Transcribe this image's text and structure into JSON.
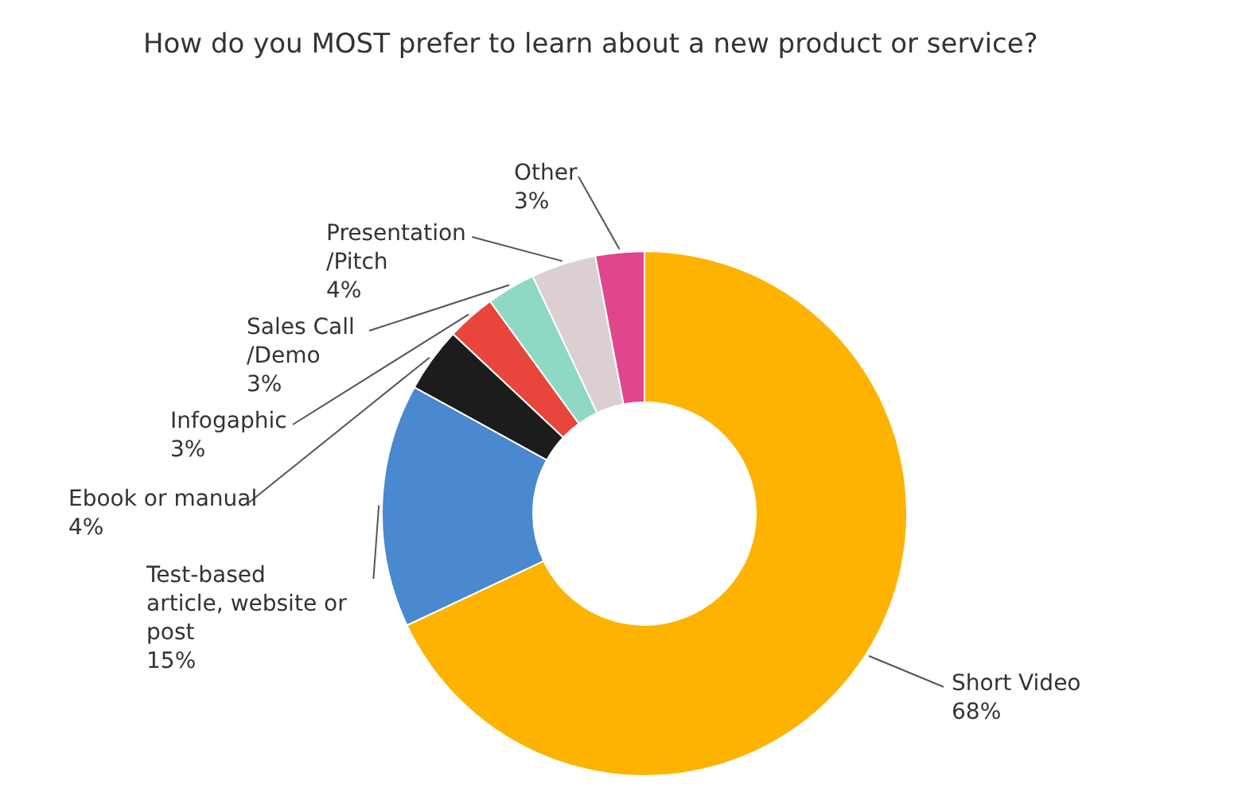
{
  "chart_data": {
    "type": "donut",
    "title": "How do you MOST prefer to learn about a new product or service?",
    "categories": [
      "Short Video",
      "Test-based\narticle, website or\npost",
      "Ebook or manual",
      "Infogaphic",
      "Sales Call\n/Demo",
      "Presentation\n/Pitch",
      "Other"
    ],
    "values": [
      68,
      15,
      4,
      3,
      3,
      4,
      3
    ],
    "colors": [
      "#fdb300",
      "#4a88d0",
      "#1c1c1c",
      "#e8463c",
      "#8fd8c6",
      "#dccfd2",
      "#e0468c"
    ],
    "value_labels": [
      "68%",
      "15%",
      "4%",
      "3%",
      "3%",
      "4%",
      "3%"
    ]
  }
}
